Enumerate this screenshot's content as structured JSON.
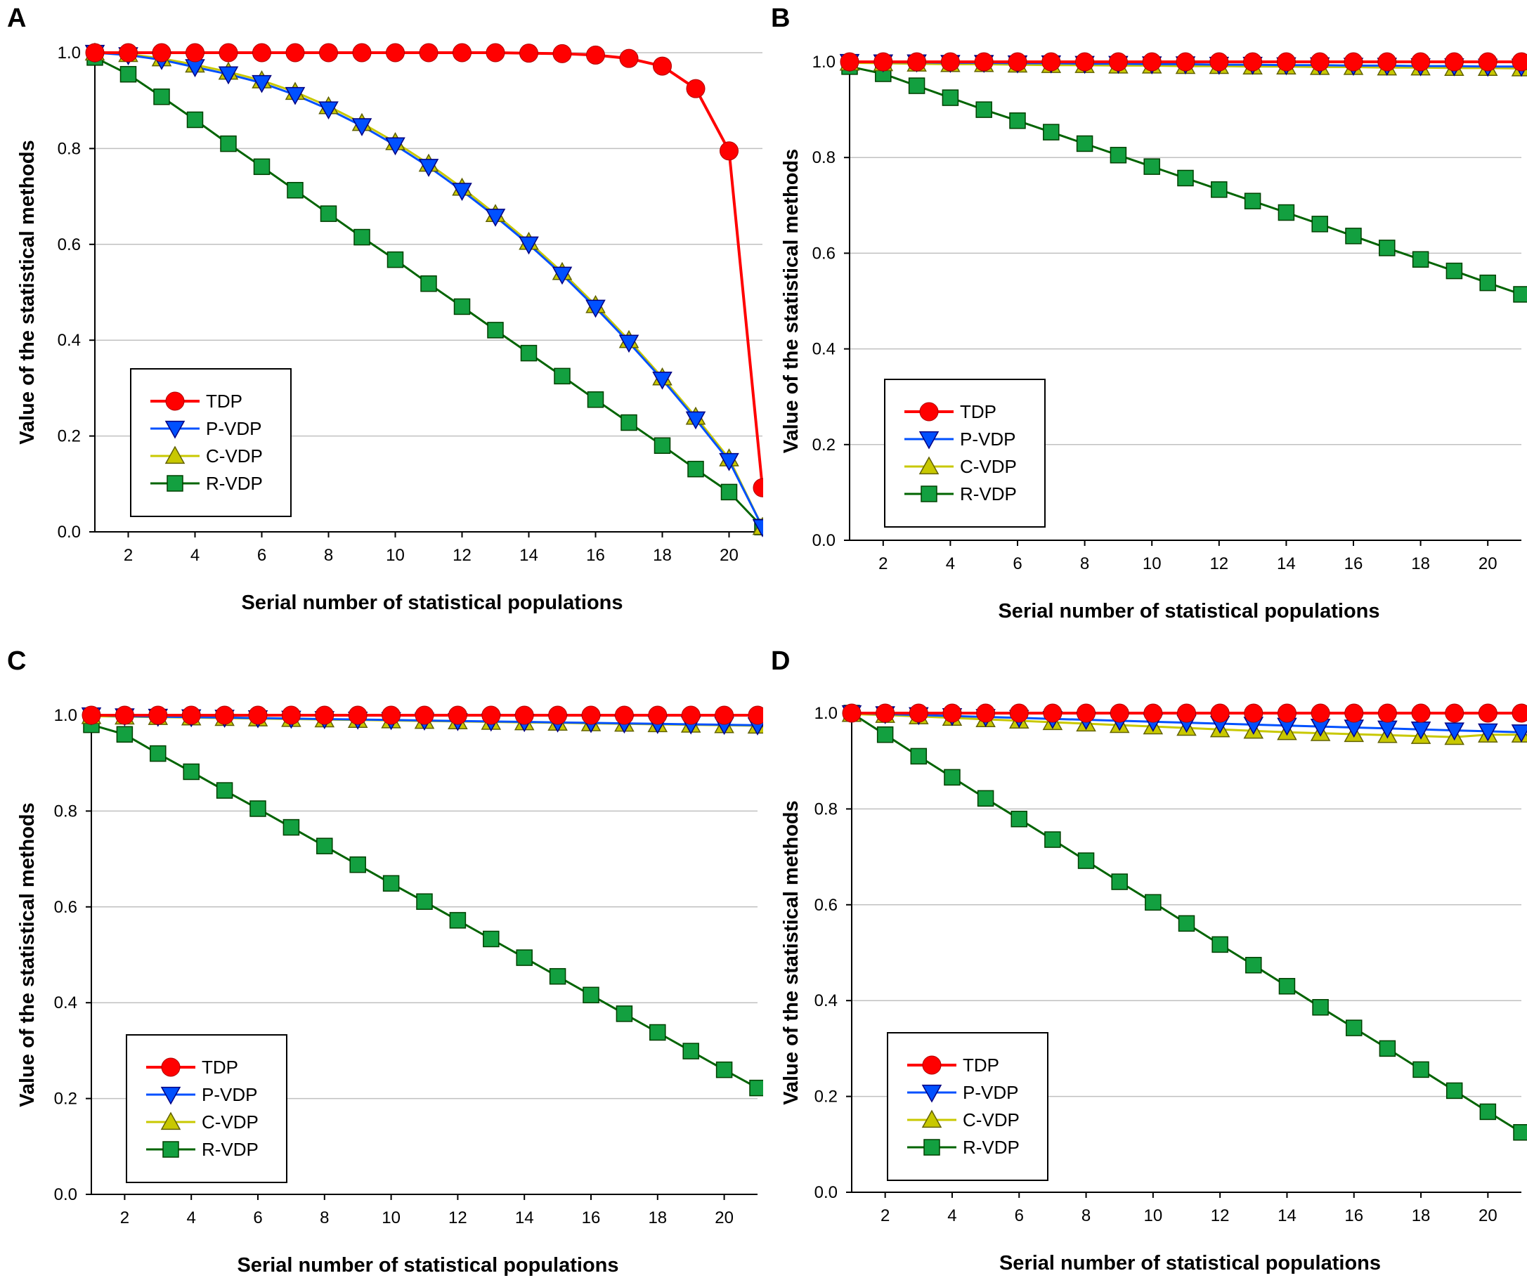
{
  "colors": {
    "TDP": "#ff0000",
    "P-VDP": "#0050ff",
    "C-VDP": "#c8c800",
    "R-VDP": "#006400",
    "R-VDP-marker": "#13a040",
    "grid": "#c0c0c0"
  },
  "chart_data": [
    {
      "panel": "A",
      "type": "line",
      "xlabel": "Serial number of statistical populations",
      "ylabel": "Value of the statistical methods",
      "xlim": [
        1,
        21
      ],
      "ylim": [
        0.0,
        1.0
      ],
      "xticks": [
        "2",
        "4",
        "6",
        "8",
        "10",
        "12",
        "14",
        "16",
        "18",
        "20"
      ],
      "yticks": [
        "0.0",
        "0.2",
        "0.4",
        "0.6",
        "0.8",
        "1.0"
      ],
      "legend": [
        "TDP",
        "P-VDP",
        "C-VDP",
        "R-VDP"
      ],
      "x": [
        1,
        2,
        3,
        4,
        5,
        6,
        7,
        8,
        9,
        10,
        11,
        12,
        13,
        14,
        15,
        16,
        17,
        18,
        19,
        20,
        21
      ],
      "series": [
        {
          "name": "TDP",
          "values": [
            1.0,
            1.0,
            1.0,
            1.0,
            1.0,
            1.0,
            1.0,
            1.0,
            1.0,
            1.0,
            1.0,
            1.0,
            1.0,
            0.999,
            0.998,
            0.995,
            0.988,
            0.972,
            0.925,
            0.795,
            0.092
          ]
        },
        {
          "name": "P-VDP",
          "values": [
            1.0,
            0.995,
            0.985,
            0.97,
            0.955,
            0.937,
            0.912,
            0.882,
            0.847,
            0.807,
            0.762,
            0.712,
            0.658,
            0.6,
            0.537,
            0.468,
            0.395,
            0.318,
            0.235,
            0.148,
            0.01
          ]
        },
        {
          "name": "C-VDP",
          "values": [
            1.0,
            0.997,
            0.988,
            0.975,
            0.96,
            0.942,
            0.918,
            0.888,
            0.853,
            0.813,
            0.768,
            0.718,
            0.663,
            0.605,
            0.542,
            0.473,
            0.4,
            0.322,
            0.24,
            0.153,
            0.01
          ]
        },
        {
          "name": "R-VDP",
          "values": [
            0.99,
            0.955,
            0.908,
            0.86,
            0.81,
            0.762,
            0.713,
            0.664,
            0.615,
            0.568,
            0.518,
            0.47,
            0.421,
            0.373,
            0.325,
            0.276,
            0.228,
            0.18,
            0.131,
            0.083,
            0.01
          ]
        }
      ]
    },
    {
      "panel": "B",
      "type": "line",
      "xlabel": "Serial number of statistical populations",
      "ylabel": "Value of the statistical methods",
      "xlim": [
        1,
        21
      ],
      "ylim": [
        0.0,
        1.0
      ],
      "xticks": [
        "2",
        "4",
        "6",
        "8",
        "10",
        "12",
        "14",
        "16",
        "18",
        "20"
      ],
      "yticks": [
        "0.0",
        "0.2",
        "0.4",
        "0.6",
        "0.8",
        "1.0"
      ],
      "legend": [
        "TDP",
        "P-VDP",
        "C-VDP",
        "R-VDP"
      ],
      "x": [
        1,
        2,
        3,
        4,
        5,
        6,
        7,
        8,
        9,
        10,
        11,
        12,
        13,
        14,
        15,
        16,
        17,
        18,
        19,
        20,
        21
      ],
      "series": [
        {
          "name": "TDP",
          "values": [
            1.0,
            1.0,
            1.0,
            1.0,
            1.0,
            1.0,
            1.0,
            1.0,
            1.0,
            1.0,
            1.0,
            1.0,
            1.0,
            1.0,
            1.0,
            1.0,
            1.0,
            1.0,
            1.0,
            1.0,
            1.0
          ]
        },
        {
          "name": "P-VDP",
          "values": [
            1.0,
            0.999,
            0.999,
            0.998,
            0.998,
            0.997,
            0.997,
            0.996,
            0.996,
            0.995,
            0.995,
            0.994,
            0.994,
            0.993,
            0.993,
            0.992,
            0.992,
            0.991,
            0.991,
            0.99,
            0.99
          ]
        },
        {
          "name": "C-VDP",
          "values": [
            0.998,
            0.997,
            0.996,
            0.995,
            0.995,
            0.994,
            0.993,
            0.993,
            0.992,
            0.992,
            0.991,
            0.991,
            0.99,
            0.99,
            0.989,
            0.989,
            0.988,
            0.988,
            0.987,
            0.987,
            0.986
          ]
        },
        {
          "name": "R-VDP",
          "values": [
            0.99,
            0.975,
            0.95,
            0.925,
            0.9,
            0.877,
            0.853,
            0.829,
            0.805,
            0.781,
            0.757,
            0.733,
            0.709,
            0.685,
            0.661,
            0.636,
            0.611,
            0.587,
            0.563,
            0.538,
            0.514
          ]
        }
      ]
    },
    {
      "panel": "C",
      "type": "line",
      "xlabel": "Serial number of statistical populations",
      "ylabel": "Value of the statistical methods",
      "xlim": [
        1,
        21
      ],
      "ylim": [
        0.0,
        1.0
      ],
      "xticks": [
        "2",
        "4",
        "6",
        "8",
        "10",
        "12",
        "14",
        "16",
        "18",
        "20"
      ],
      "yticks": [
        "0.0",
        "0.2",
        "0.4",
        "0.6",
        "0.8",
        "1.0"
      ],
      "legend": [
        "TDP",
        "P-VDP",
        "C-VDP",
        "R-VDP"
      ],
      "x": [
        1,
        2,
        3,
        4,
        5,
        6,
        7,
        8,
        9,
        10,
        11,
        12,
        13,
        14,
        15,
        16,
        17,
        18,
        19,
        20,
        21
      ],
      "series": [
        {
          "name": "TDP",
          "values": [
            1.0,
            1.0,
            1.0,
            1.0,
            1.0,
            1.0,
            1.0,
            1.0,
            1.0,
            1.0,
            1.0,
            1.0,
            1.0,
            1.0,
            1.0,
            1.0,
            1.0,
            1.0,
            1.0,
            1.0,
            1.0
          ]
        },
        {
          "name": "P-VDP",
          "values": [
            1.0,
            0.998,
            0.997,
            0.996,
            0.995,
            0.994,
            0.993,
            0.992,
            0.991,
            0.99,
            0.989,
            0.988,
            0.987,
            0.986,
            0.985,
            0.984,
            0.983,
            0.982,
            0.981,
            0.98,
            0.979
          ]
        },
        {
          "name": "C-VDP",
          "values": [
            0.998,
            0.997,
            0.996,
            0.995,
            0.994,
            0.993,
            0.992,
            0.991,
            0.99,
            0.989,
            0.988,
            0.987,
            0.986,
            0.985,
            0.984,
            0.983,
            0.982,
            0.981,
            0.98,
            0.979,
            0.978
          ]
        },
        {
          "name": "R-VDP",
          "values": [
            0.98,
            0.96,
            0.92,
            0.882,
            0.843,
            0.805,
            0.766,
            0.727,
            0.688,
            0.649,
            0.611,
            0.572,
            0.533,
            0.494,
            0.455,
            0.416,
            0.377,
            0.338,
            0.299,
            0.26,
            0.222
          ]
        }
      ]
    },
    {
      "panel": "D",
      "type": "line",
      "xlabel": "Serial number of statistical populations",
      "ylabel": "Value of the statistical methods",
      "xlim": [
        1,
        21
      ],
      "ylim": [
        0.0,
        1.0
      ],
      "xticks": [
        "2",
        "4",
        "6",
        "8",
        "10",
        "12",
        "14",
        "16",
        "18",
        "20"
      ],
      "yticks": [
        "0.0",
        "0.2",
        "0.4",
        "0.6",
        "0.8",
        "1.0"
      ],
      "legend": [
        "TDP",
        "P-VDP",
        "C-VDP",
        "R-VDP"
      ],
      "x": [
        1,
        2,
        3,
        4,
        5,
        6,
        7,
        8,
        9,
        10,
        11,
        12,
        13,
        14,
        15,
        16,
        17,
        18,
        19,
        20,
        21
      ],
      "series": [
        {
          "name": "TDP",
          "values": [
            1.0,
            1.0,
            1.0,
            1.0,
            1.0,
            1.0,
            1.0,
            1.0,
            1.0,
            1.0,
            1.0,
            1.0,
            1.0,
            1.0,
            1.0,
            1.0,
            1.0,
            1.0,
            1.0,
            1.0,
            1.0
          ]
        },
        {
          "name": "P-VDP",
          "values": [
            1.0,
            0.998,
            0.996,
            0.994,
            0.992,
            0.99,
            0.988,
            0.986,
            0.984,
            0.982,
            0.98,
            0.978,
            0.976,
            0.974,
            0.972,
            0.97,
            0.968,
            0.966,
            0.964,
            0.962,
            0.96
          ]
        },
        {
          "name": "C-VDP",
          "values": [
            0.998,
            0.996,
            0.993,
            0.99,
            0.987,
            0.984,
            0.981,
            0.978,
            0.975,
            0.972,
            0.969,
            0.966,
            0.963,
            0.96,
            0.958,
            0.956,
            0.954,
            0.952,
            0.95,
            0.955,
            0.955
          ]
        },
        {
          "name": "R-VDP",
          "values": [
            1.0,
            0.955,
            0.91,
            0.866,
            0.822,
            0.779,
            0.736,
            0.692,
            0.648,
            0.605,
            0.561,
            0.517,
            0.474,
            0.43,
            0.386,
            0.343,
            0.3,
            0.256,
            0.212,
            0.168,
            0.125
          ]
        }
      ]
    }
  ]
}
